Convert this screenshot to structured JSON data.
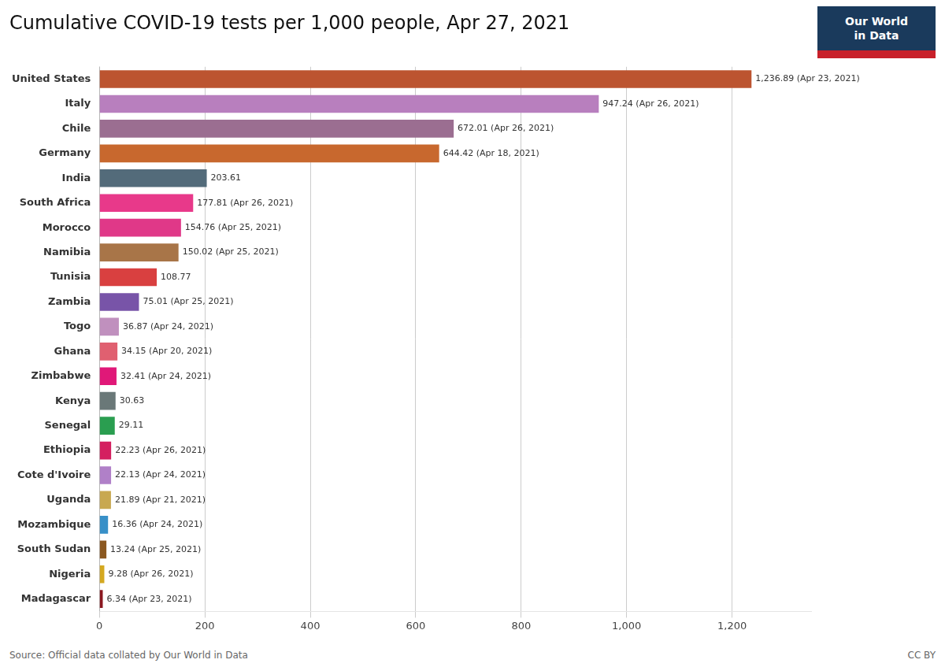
{
  "chart_data": {
    "type": "bar",
    "orientation": "horizontal",
    "title": "Cumulative COVID-19 tests per 1,000 people, Apr 27, 2021",
    "annotations": [
      "Source: Official data collated by Our World in Data",
      "CC BY",
      "Our World",
      "in Data"
    ],
    "categories": [
      "United States",
      "Italy",
      "Chile",
      "Germany",
      "India",
      "South Africa",
      "Morocco",
      "Namibia",
      "Tunisia",
      "Zambia",
      "Togo",
      "Ghana",
      "Zimbabwe",
      "Kenya",
      "Senegal",
      "Ethiopia",
      "Cote d'Ivoire",
      "Uganda",
      "Mozambique",
      "South Sudan",
      "Nigeria",
      "Madagascar"
    ],
    "values": [
      1236.89,
      947.24,
      672.01,
      644.42,
      203.61,
      177.81,
      154.76,
      150.02,
      108.77,
      75.01,
      36.87,
      34.15,
      32.41,
      30.63,
      29.11,
      22.23,
      22.13,
      21.89,
      16.36,
      13.24,
      9.28,
      6.34
    ],
    "value_labels": [
      "1,236.89 (Apr 23, 2021)",
      "947.24 (Apr 26, 2021)",
      "672.01 (Apr 26, 2021)",
      "644.42 (Apr 18, 2021)",
      "203.61",
      "177.81 (Apr 26, 2021)",
      "154.76 (Apr 25, 2021)",
      "150.02 (Apr 25, 2021)",
      "108.77",
      "75.01 (Apr 25, 2021)",
      "36.87 (Apr 24, 2021)",
      "34.15 (Apr 20, 2021)",
      "32.41 (Apr 24, 2021)",
      "30.63",
      "29.11",
      "22.23 (Apr 26, 2021)",
      "22.13 (Apr 24, 2021)",
      "21.89 (Apr 21, 2021)",
      "16.36 (Apr 24, 2021)",
      "13.24 (Apr 25, 2021)",
      "9.28 (Apr 26, 2021)",
      "6.34 (Apr 23, 2021)"
    ],
    "data_labels": true,
    "colors": [
      "#bc5430",
      "#b87fbe",
      "#9b6e91",
      "#c8682e",
      "#536b7a",
      "#e8398a",
      "#e03888",
      "#a87548",
      "#d94040",
      "#7854a8",
      "#c090be",
      "#e06070",
      "#e01878",
      "#6a7878",
      "#2a9e50",
      "#d42060",
      "#b080c8",
      "#c8a850",
      "#3890c8",
      "#8b5820",
      "#d4a820",
      "#8b1820"
    ],
    "xlim": [
      0,
      1350
    ],
    "xticks": [
      0,
      200,
      400,
      600,
      800,
      {
        "value": 1000,
        "label": "1,000"
      },
      {
        "value": 1200,
        "label": "1,200"
      }
    ],
    "grid": true
  }
}
